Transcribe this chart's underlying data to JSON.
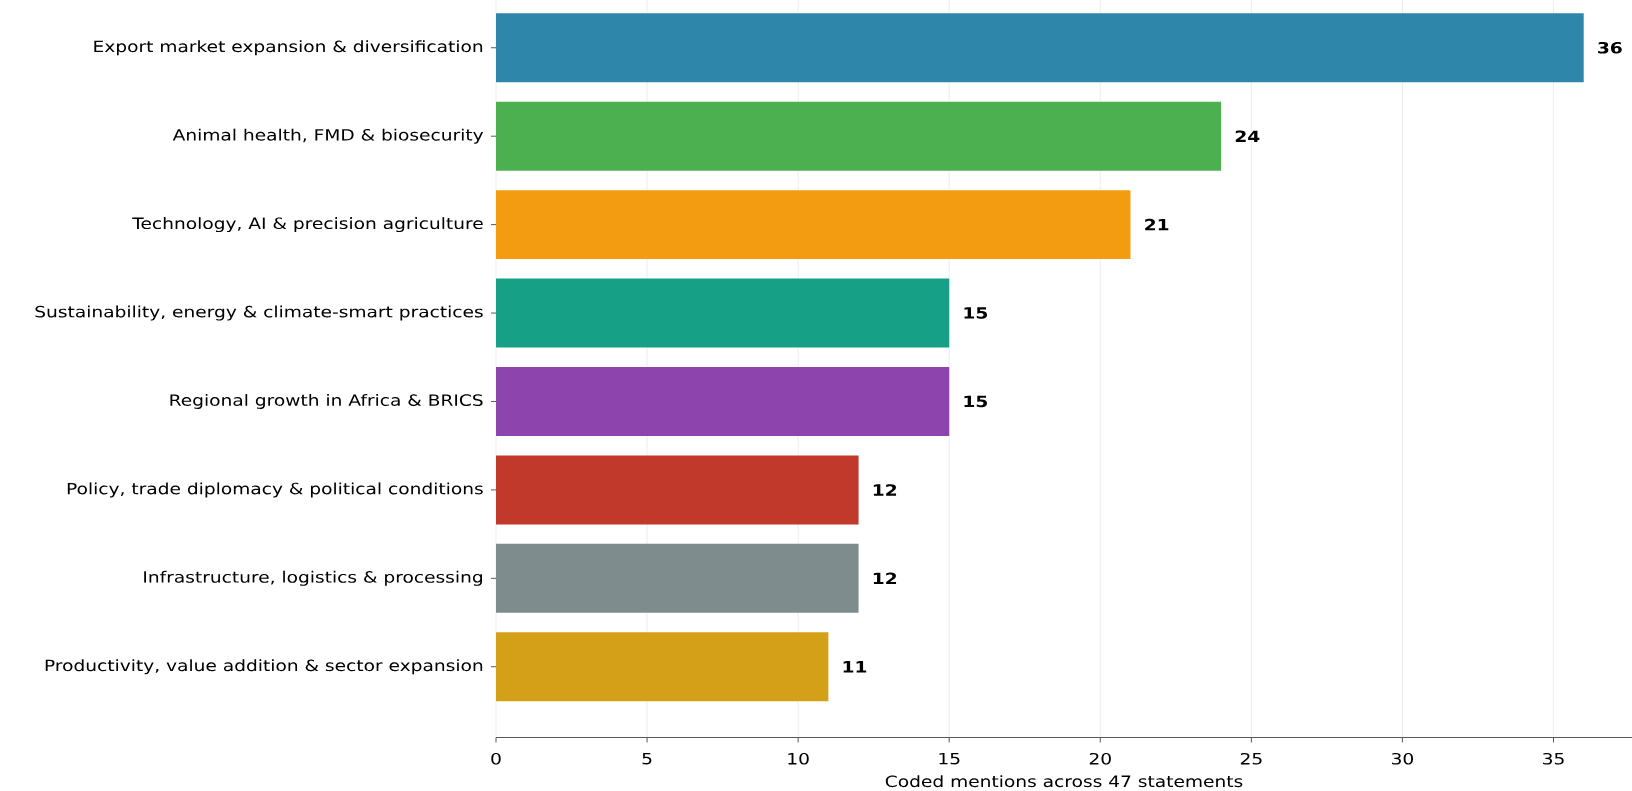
{
  "chart_data": {
    "type": "bar",
    "orientation": "horizontal",
    "categories": [
      "Export market expansion & diversification",
      "Animal health, FMD & biosecurity",
      "Technology, AI & precision agriculture",
      "Sustainability, energy & climate-smart practices",
      "Regional growth in Africa & BRICS",
      "Policy, trade diplomacy & political conditions",
      "Infrastructure, logistics & processing",
      "Productivity, value addition & sector expansion"
    ],
    "values": [
      36,
      24,
      21,
      15,
      15,
      12,
      12,
      11
    ],
    "colors": [
      "#2e86ab",
      "#4caf50",
      "#f39c12",
      "#16a085",
      "#8e44ad",
      "#c0392b",
      "#7f8c8d",
      "#d4a017"
    ],
    "xlabel": "Coded mentions across 47 statements",
    "xlim": [
      0,
      37.6
    ],
    "xticks": [
      0,
      5,
      10,
      15,
      20,
      25,
      30,
      35
    ],
    "grid": "x",
    "data_labels": true
  }
}
